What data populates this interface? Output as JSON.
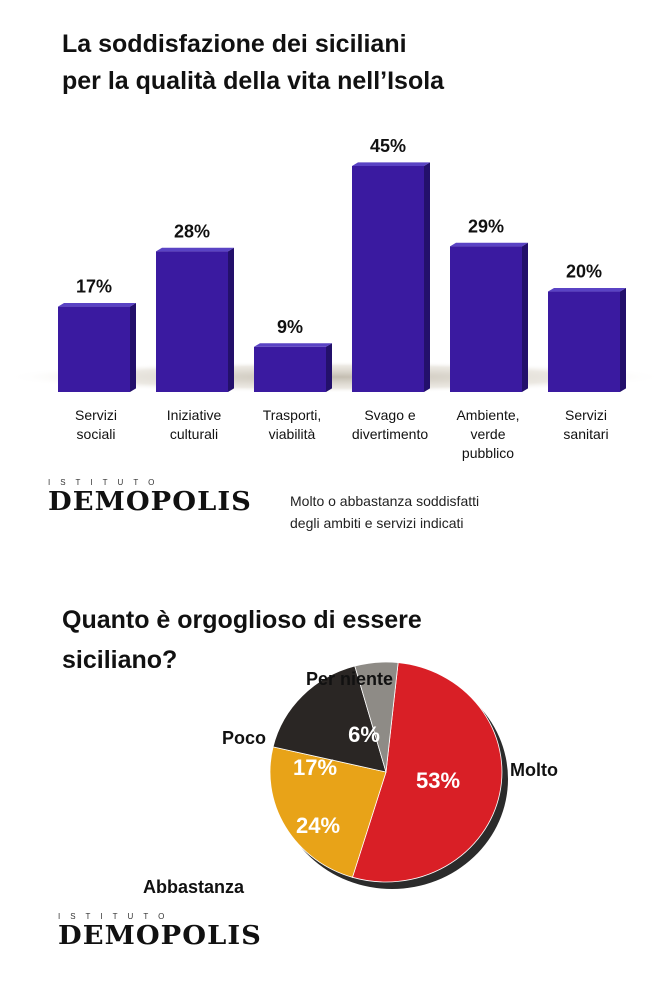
{
  "header": {
    "title_line1": "La soddisfazione dei siciliani",
    "title_line2": "per la qualità della vita nell’Isola"
  },
  "logo": {
    "kicker": "ISTITUTO",
    "name": "DEMOPOLIS"
  },
  "bar_note": {
    "line1": "Molto o abbastanza soddisfatti",
    "line2": "degli ambiti e servizi indicati"
  },
  "pie_header": {
    "title_line1": "Quanto è orgoglioso di essere",
    "title_line2": "siciliano?"
  },
  "chart_data": [
    {
      "type": "bar",
      "title": "La soddisfazione dei siciliani per la qualità della vita nell’Isola",
      "categories": [
        [
          "Servizi",
          "sociali"
        ],
        [
          "Iniziative",
          "culturali"
        ],
        [
          "Trasporti,",
          "viabilità"
        ],
        [
          "Svago e",
          "divertimento"
        ],
        [
          "Ambiente,",
          "verde",
          "pubblico"
        ],
        [
          "Servizi",
          "sanitari"
        ]
      ],
      "values": [
        17,
        28,
        9,
        45,
        29,
        20
      ],
      "value_labels": [
        "17%",
        "28%",
        "9%",
        "45%",
        "29%",
        "20%"
      ],
      "ylim": [
        0,
        45
      ],
      "bar_color": "#3a1aa0",
      "grid": false
    },
    {
      "type": "pie",
      "title": "Quanto è orgoglioso di essere siciliano?",
      "slices": [
        {
          "label": "Molto",
          "value": 53,
          "value_label": "53%",
          "color": "#d91f26"
        },
        {
          "label": "Abbastanza",
          "value": 24,
          "value_label": "24%",
          "color": "#e8a318"
        },
        {
          "label": "Poco",
          "value": 17,
          "value_label": "17%",
          "color": "#2a2624"
        },
        {
          "label": "Per niente",
          "value": 6,
          "value_label": "6%",
          "color": "#8e8b86"
        }
      ]
    }
  ]
}
